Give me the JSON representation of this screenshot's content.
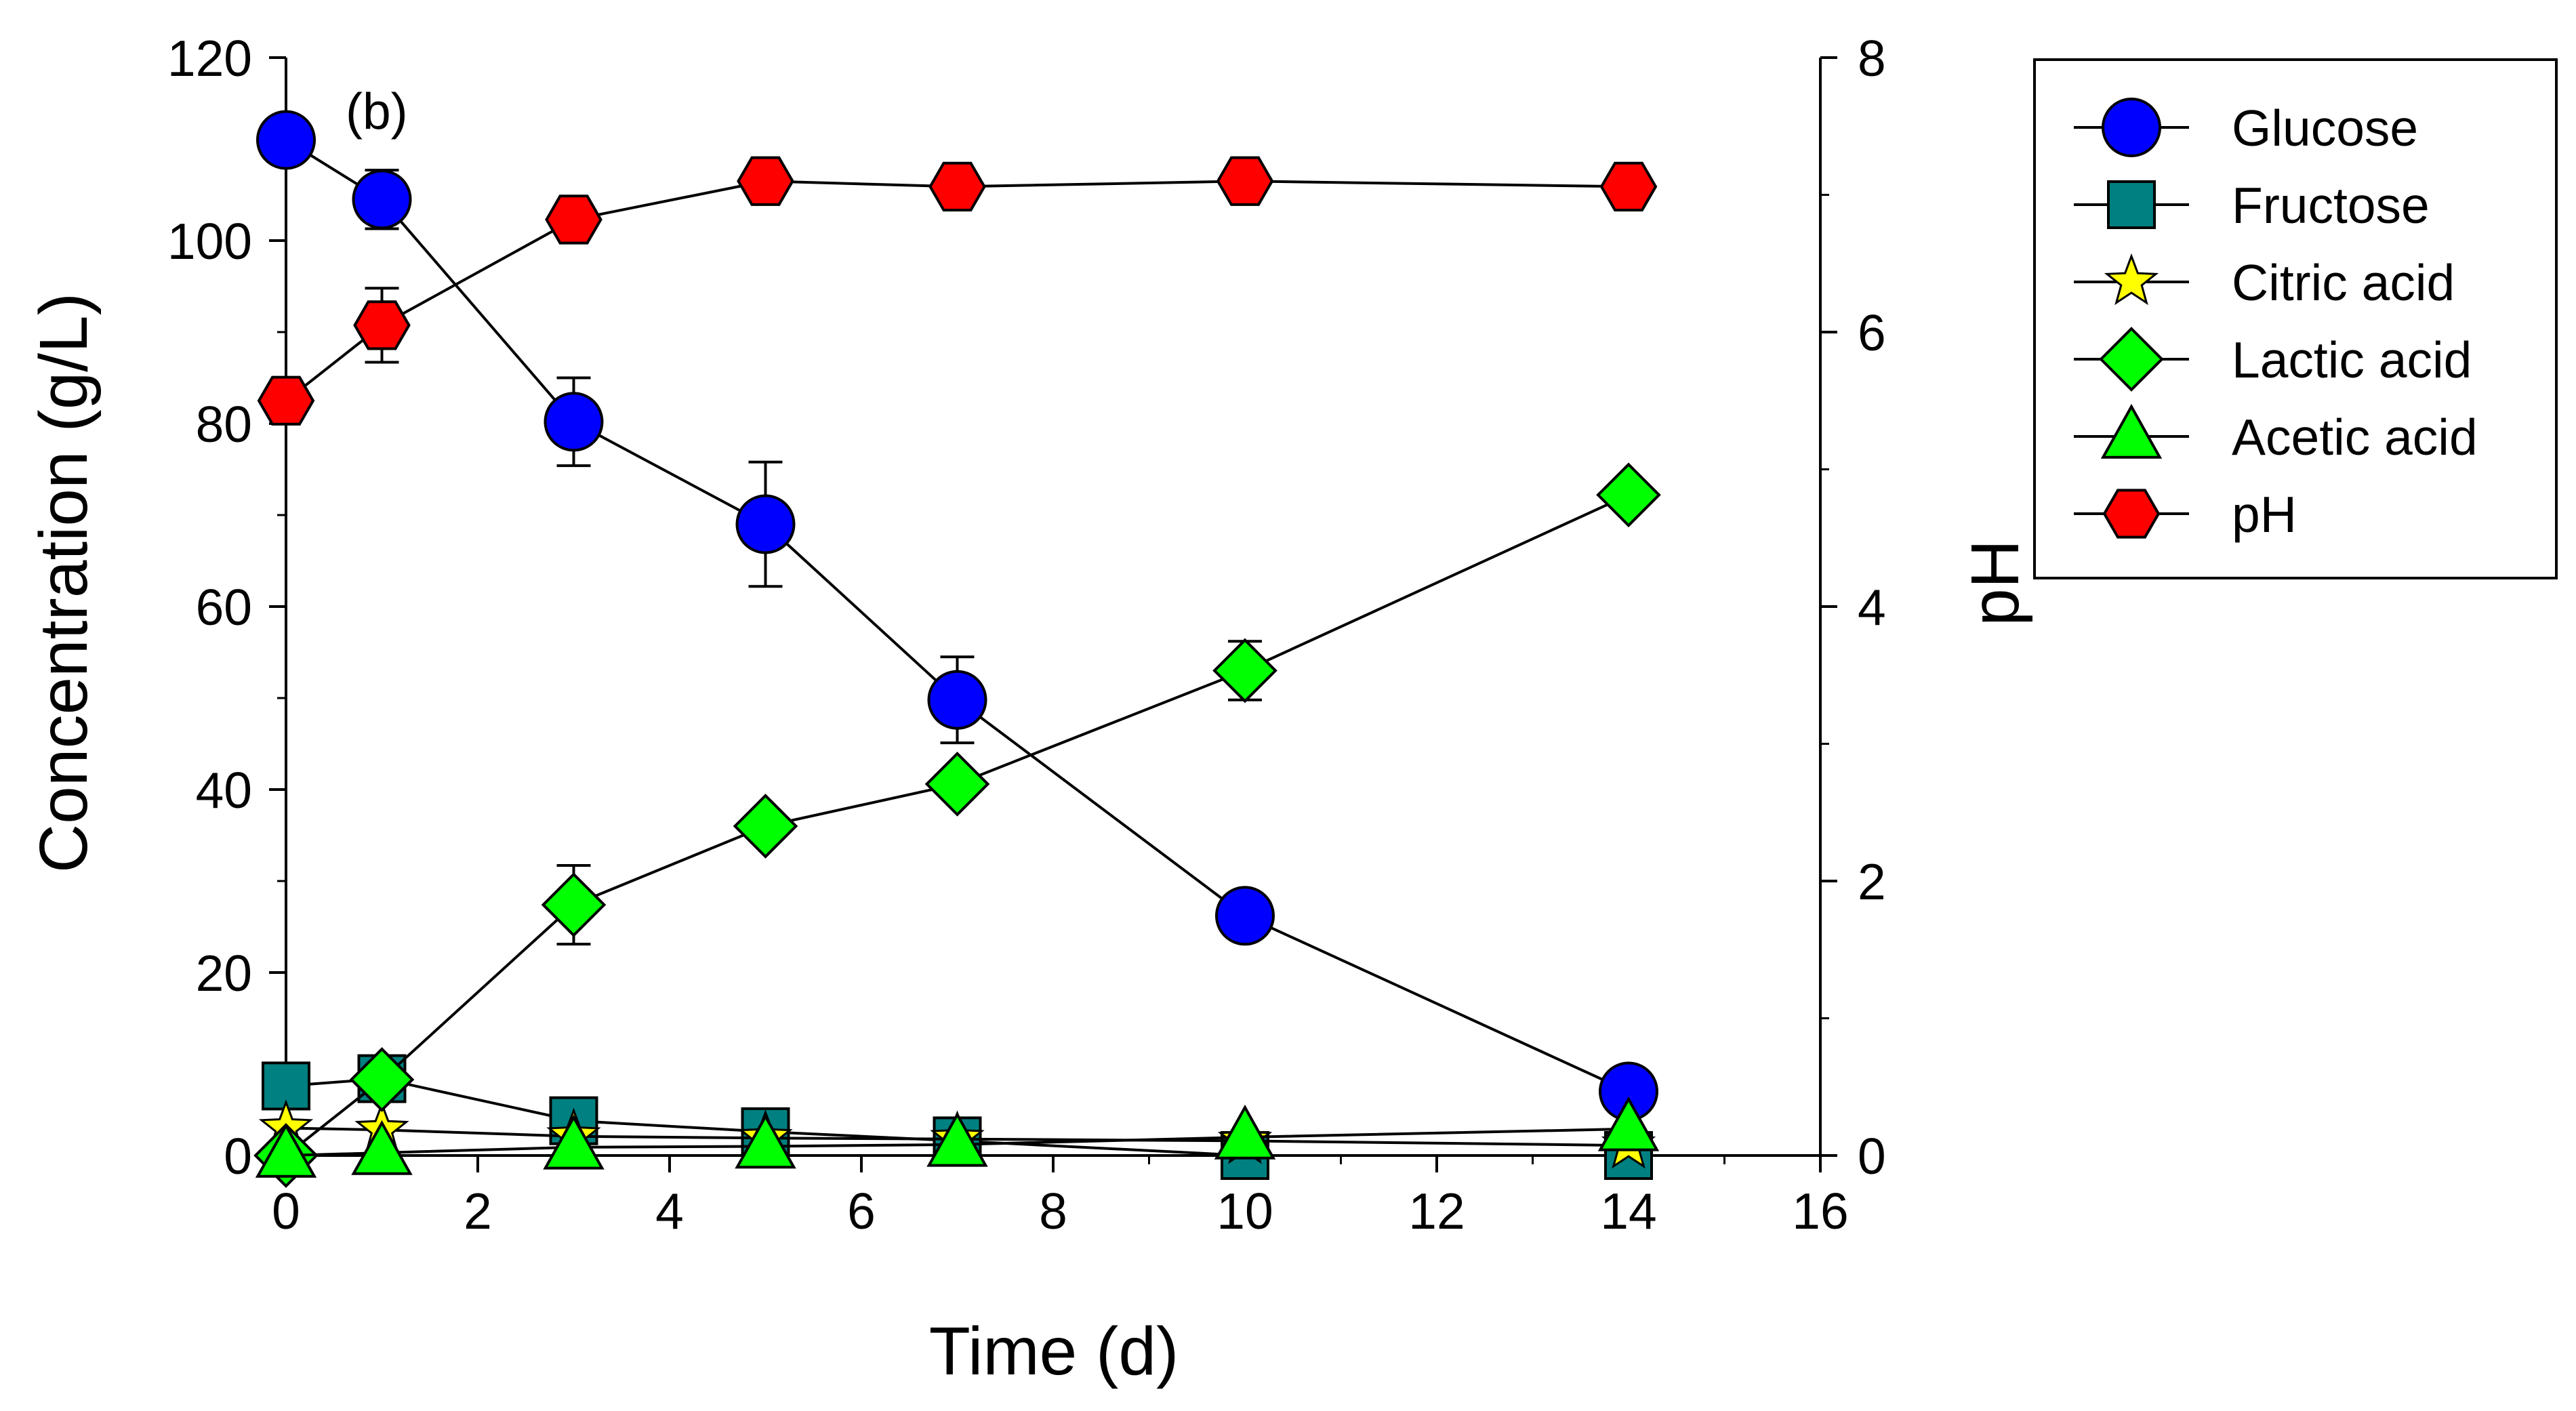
{
  "chart_data": {
    "type": "line",
    "panel_label": "(b)",
    "xlabel": "Time (d)",
    "ylabel_left": "Concentration (g/L)",
    "ylabel_right": "pH",
    "xlim": [
      0,
      16
    ],
    "ylim_left": [
      0,
      120
    ],
    "ylim_right": [
      0,
      8
    ],
    "x_ticks": [
      0,
      2,
      4,
      6,
      8,
      10,
      12,
      14,
      16
    ],
    "y_left_ticks": [
      0,
      20,
      40,
      60,
      80,
      100,
      120
    ],
    "y_right_ticks": [
      0,
      2,
      4,
      6,
      8
    ],
    "grid": false,
    "legend_position": "right-outside-top",
    "x": [
      0,
      1,
      3,
      5,
      7,
      10,
      14
    ],
    "series": [
      {
        "name": "Glucose",
        "axis": "left",
        "marker": "circle",
        "color": "#0000ff",
        "values": [
          111,
          104.5,
          80.2,
          69,
          49.8,
          26.2,
          7
        ],
        "errors": [
          0,
          3.2,
          4.8,
          6.8,
          4.7,
          0,
          0
        ]
      },
      {
        "name": "Fructose",
        "axis": "left",
        "marker": "square",
        "color": "#008080",
        "values": [
          7.6,
          8.4,
          3.8,
          2.6,
          1.6,
          0,
          0
        ],
        "errors": [
          0,
          0,
          0,
          0,
          0,
          0,
          0
        ]
      },
      {
        "name": "Citric acid",
        "axis": "left",
        "marker": "star",
        "color": "#ffff00",
        "values": [
          3,
          2.8,
          2.1,
          1.9,
          1.8,
          1.6,
          1.1
        ],
        "errors": [
          0,
          0,
          0,
          0,
          0,
          0,
          0
        ]
      },
      {
        "name": "Lactic acid",
        "axis": "left",
        "marker": "diamond",
        "color": "#00ff00",
        "values": [
          0,
          8.3,
          27.4,
          36,
          40.6,
          53,
          72.2
        ],
        "errors": [
          0,
          0,
          4.3,
          0,
          0,
          3.2,
          0
        ]
      },
      {
        "name": "Acetic acid",
        "axis": "left",
        "marker": "triangle",
        "color": "#00ff00",
        "values": [
          0,
          0.3,
          0.9,
          1,
          1.2,
          2,
          2.9
        ],
        "errors": [
          0,
          0,
          0,
          0,
          0,
          0,
          0
        ]
      },
      {
        "name": "pH",
        "axis": "right",
        "marker": "hexagon",
        "color": "#ff0000",
        "values": [
          5.5,
          6.05,
          6.82,
          7.1,
          7.06,
          7.1,
          7.06
        ],
        "errors": [
          0,
          0.27,
          0,
          0,
          0,
          0,
          0
        ]
      }
    ]
  }
}
